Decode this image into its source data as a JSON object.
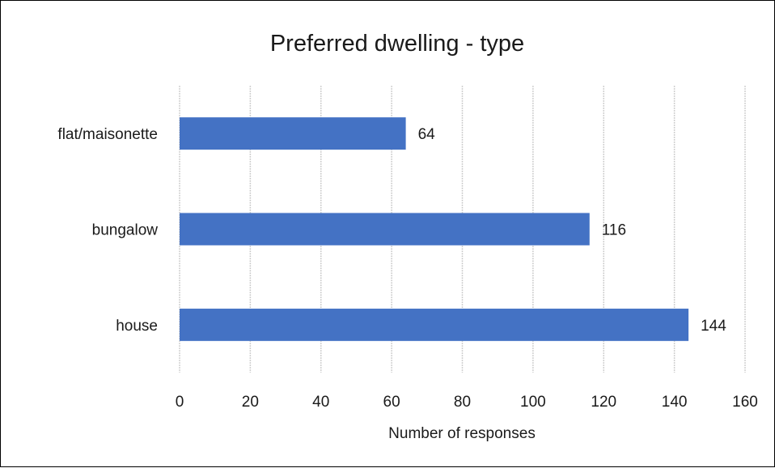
{
  "chart_data": {
    "type": "bar",
    "orientation": "horizontal",
    "title": "Preferred dwelling - type",
    "xlabel": "Number of responses",
    "ylabel": "",
    "categories": [
      "flat/maisonette",
      "bungalow",
      "house"
    ],
    "values": [
      64,
      116,
      144
    ],
    "xlim": [
      0,
      160
    ],
    "x_ticks": [
      0,
      20,
      40,
      60,
      80,
      100,
      120,
      140,
      160
    ],
    "grid": true,
    "data_labels": true,
    "legend": "none",
    "bar_color": "#4472C4"
  }
}
